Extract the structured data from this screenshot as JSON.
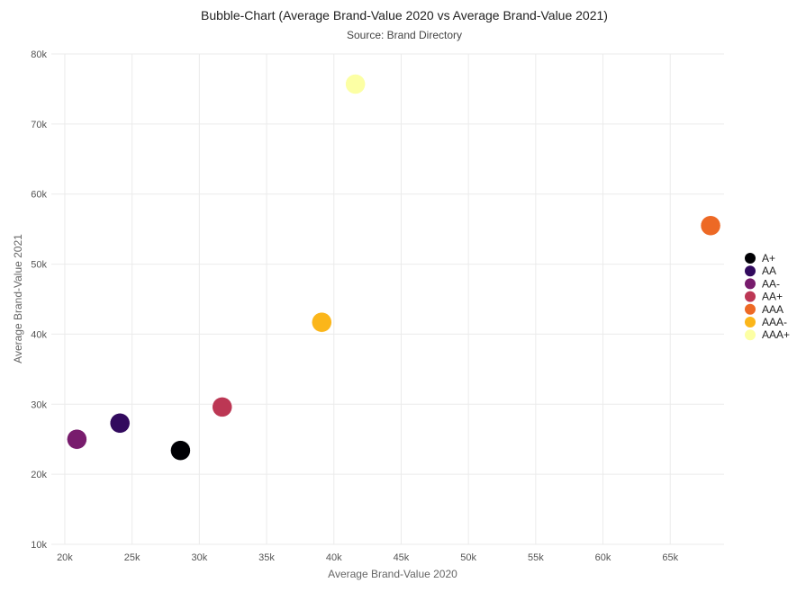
{
  "chart_data": {
    "type": "scatter",
    "title": "Bubble-Chart (Average Brand-Value 2020 vs Average Brand-Value 2021)",
    "subtitle": "Source: Brand Directory",
    "xlabel": "Average Brand-Value 2020",
    "ylabel": "Average Brand-Value 2021",
    "xlim": [
      19000,
      69000
    ],
    "ylim": [
      10000,
      80000
    ],
    "x_ticks": [
      20000,
      25000,
      30000,
      35000,
      40000,
      45000,
      50000,
      55000,
      60000,
      65000
    ],
    "x_tick_labels": [
      "20k",
      "25k",
      "30k",
      "35k",
      "40k",
      "45k",
      "50k",
      "55k",
      "60k",
      "65k"
    ],
    "y_ticks": [
      10000,
      20000,
      30000,
      40000,
      50000,
      60000,
      70000,
      80000
    ],
    "y_tick_labels": [
      "10k",
      "20k",
      "30k",
      "40k",
      "50k",
      "60k",
      "70k",
      "80k"
    ],
    "grid": true,
    "legend_position": "right",
    "series": [
      {
        "name": "A+",
        "color": "#000004",
        "x": [
          28600
        ],
        "y": [
          23400
        ]
      },
      {
        "name": "AA",
        "color": "#320a5e",
        "x": [
          24100
        ],
        "y": [
          27300
        ]
      },
      {
        "name": "AA-",
        "color": "#781c6d",
        "x": [
          20900
        ],
        "y": [
          25000
        ]
      },
      {
        "name": "AA+",
        "color": "#bc3754",
        "x": [
          31700
        ],
        "y": [
          29600
        ]
      },
      {
        "name": "AAA",
        "color": "#ed6925",
        "x": [
          68000
        ],
        "y": [
          55500
        ]
      },
      {
        "name": "AAA-",
        "color": "#fbb61a",
        "x": [
          39100
        ],
        "y": [
          41700
        ]
      },
      {
        "name": "AAA+",
        "color": "#fcffa4",
        "x": [
          41600
        ],
        "y": [
          75700
        ]
      }
    ]
  }
}
